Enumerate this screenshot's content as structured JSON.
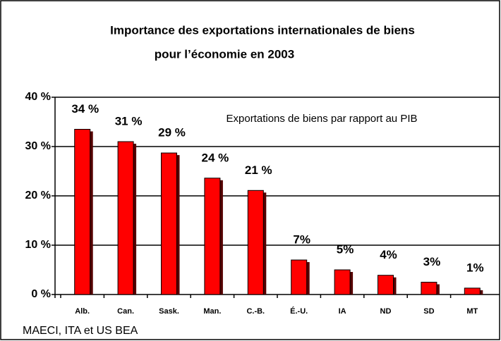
{
  "chart_data": {
    "type": "bar",
    "title": [
      "Importance des exportations internationales de biens",
      "pour l’économie en 2003"
    ],
    "annotation": "Exportations de biens par rapport au PIB",
    "source": "MAECI, ITA et US BEA",
    "categories": [
      "Alb.",
      "Can.",
      "Sask.",
      "Man.",
      "C.-B.",
      "É.-U.",
      "IA",
      "ND",
      "SD",
      "MT"
    ],
    "values": [
      33.5,
      31,
      28.7,
      23.6,
      21.1,
      7,
      5,
      3.9,
      2.5,
      1.3
    ],
    "value_labels": [
      "34 %",
      "31 %",
      "29 %",
      "24 %",
      "21 %",
      "7%",
      "5%",
      "4%",
      "3%",
      "1%"
    ],
    "color": "#ff0000",
    "ylim": [
      0,
      40
    ],
    "yticks": [
      {
        "value": 0,
        "label": "0 %"
      },
      {
        "value": 10,
        "label": "10 %"
      },
      {
        "value": 20,
        "label": "20 %"
      },
      {
        "value": 30,
        "label": "30 %"
      },
      {
        "value": 40,
        "label": "40 %"
      }
    ],
    "grid": true
  }
}
